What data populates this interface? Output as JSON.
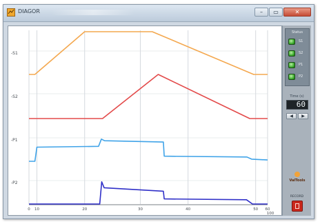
{
  "window": {
    "title": "DIAGOR",
    "minimize_glyph": "–",
    "maximize_glyph": "▭",
    "close_glyph": "✕",
    "icon": "app-icon"
  },
  "plot": {
    "trace_labels": [
      "-S1",
      "-S2",
      "-P1",
      "-P2"
    ],
    "x_ticks": [
      "0",
      "10",
      "20",
      "30",
      "40",
      "50",
      "60"
    ],
    "x_end_label": "100",
    "grid": true,
    "colors": {
      "S1": "#f4a84f",
      "S2": "#e34a4a",
      "P1": "#3fa3e8",
      "P2": "#2f2fc8",
      "grid": "#d5d9de",
      "axis": "#7a7f85",
      "label": "#444a50"
    }
  },
  "chart_data": {
    "type": "line",
    "xlim": [
      0,
      60
    ],
    "x": [
      0,
      2,
      14,
      28,
      40,
      57,
      60
    ],
    "series": [
      {
        "x": [
          0,
          1.5,
          14,
          31,
          56.5,
          60
        ],
        "values": [
          0,
          0,
          1,
          1,
          0,
          0
        ]
      },
      {
        "x": [
          0,
          18.5,
          32.5,
          55.5,
          60
        ],
        "values": [
          0,
          0,
          1,
          0,
          0
        ]
      },
      {
        "x": [
          0,
          1.5,
          2,
          17.5,
          18.2,
          19,
          33.8,
          34,
          54.8,
          56,
          60
        ],
        "values": [
          0.0,
          0.0,
          0.33,
          0.35,
          0.52,
          0.48,
          0.45,
          0.12,
          0.1,
          0.05,
          0.03
        ]
      },
      {
        "x": [
          0,
          17.8,
          18.3,
          18.9,
          33.8,
          34.0,
          54.7,
          56.2,
          60
        ],
        "values": [
          0.0,
          0.0,
          0.52,
          0.38,
          0.3,
          0.12,
          0.1,
          0.0,
          0.0
        ]
      }
    ]
  },
  "side_panel": {
    "status_title": "Status",
    "status_items": [
      {
        "label": "S1",
        "color": "#3aa52c"
      },
      {
        "label": "S2",
        "color": "#3aa52c"
      },
      {
        "label": "P1",
        "color": "#3aa52c"
      },
      {
        "label": "P2",
        "color": "#3aa52c"
      }
    ],
    "time_label": "Time (s)",
    "time_value": "60",
    "step_down": "◀",
    "step_up": "▶",
    "brand": "ValTools",
    "record_label": "RECORD"
  }
}
